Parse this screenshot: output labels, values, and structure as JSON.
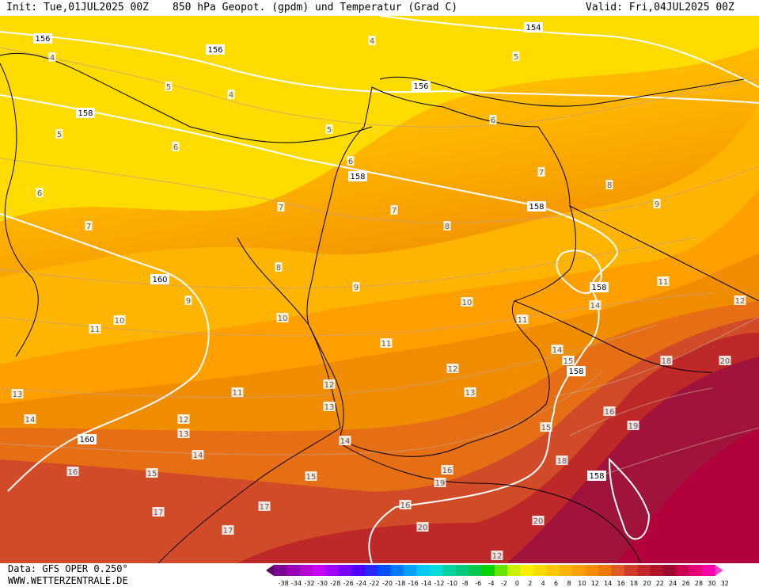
{
  "header": {
    "init": "Init: Tue,01JUL2025 00Z",
    "title": "850 hPa Geopot. (gpdm) und Temperatur (Grad C)",
    "valid": "Valid: Fri,04JUL2025 00Z"
  },
  "footer": {
    "data_source": "Data: GFS OPER 0.250°",
    "website": "WWW.WETTERZENTRALE.DE"
  },
  "legend": {
    "ticks": [
      "-38",
      "-34",
      "-32",
      "-30",
      "-28",
      "-26",
      "-24",
      "-22",
      "-20",
      "-18",
      "-16",
      "-14",
      "-12",
      "-10",
      "-8",
      "-6",
      "-4",
      "-2",
      "0",
      "2",
      "4",
      "6",
      "8",
      "10",
      "12",
      "14",
      "16",
      "18",
      "20",
      "22",
      "24",
      "26",
      "28",
      "30",
      "32"
    ],
    "colors": [
      "#5a0064",
      "#7a0090",
      "#9a00b4",
      "#b400d2",
      "#c800ff",
      "#a000ff",
      "#7800ff",
      "#5000ff",
      "#2828ff",
      "#0050ff",
      "#0078ff",
      "#00a0ff",
      "#00c8ff",
      "#00dcdc",
      "#00d2a0",
      "#00c878",
      "#00c850",
      "#00d200",
      "#64e600",
      "#c8f000",
      "#fff000",
      "#ffdc00",
      "#ffc800",
      "#ffb400",
      "#ffa000",
      "#ff8c00",
      "#f07800",
      "#e05a28",
      "#d03c28",
      "#c02828",
      "#b01428",
      "#a00a32",
      "#c80050",
      "#e6007a",
      "#ff00aa",
      "#ff3cd2"
    ]
  },
  "geopotential_labels": [
    "156",
    "156",
    "154",
    "158",
    "156",
    "158",
    "158",
    "160",
    "158",
    "160",
    "158",
    "158"
  ],
  "temperature_labels": [
    "4",
    "4",
    "4",
    "5",
    "5",
    "5",
    "5",
    "6",
    "6",
    "6",
    "6",
    "7",
    "7",
    "7",
    "7",
    "8",
    "8",
    "8",
    "9",
    "9",
    "9",
    "10",
    "10",
    "10",
    "11",
    "11",
    "11",
    "11",
    "11",
    "12",
    "12",
    "12",
    "12",
    "13",
    "13",
    "13",
    "13",
    "14",
    "14",
    "14",
    "14",
    "15",
    "15",
    "15",
    "15",
    "16",
    "16",
    "16",
    "17",
    "17",
    "17",
    "18",
    "18",
    "19",
    "19",
    "20",
    "20",
    "20",
    "12",
    "14",
    "15",
    "16"
  ],
  "colors": {
    "temp_4": "#ffdc00",
    "temp_6": "#ffc800",
    "temp_8": "#ffb400",
    "temp_10": "#ffa000",
    "temp_12": "#f08c00",
    "temp_14": "#e66e14",
    "temp_16": "#d24b28",
    "temp_18": "#be2828",
    "temp_20": "#a0143c",
    "temp_22": "#b4003c",
    "geopotential_line": "#ffffff",
    "border_line": "#000000"
  }
}
